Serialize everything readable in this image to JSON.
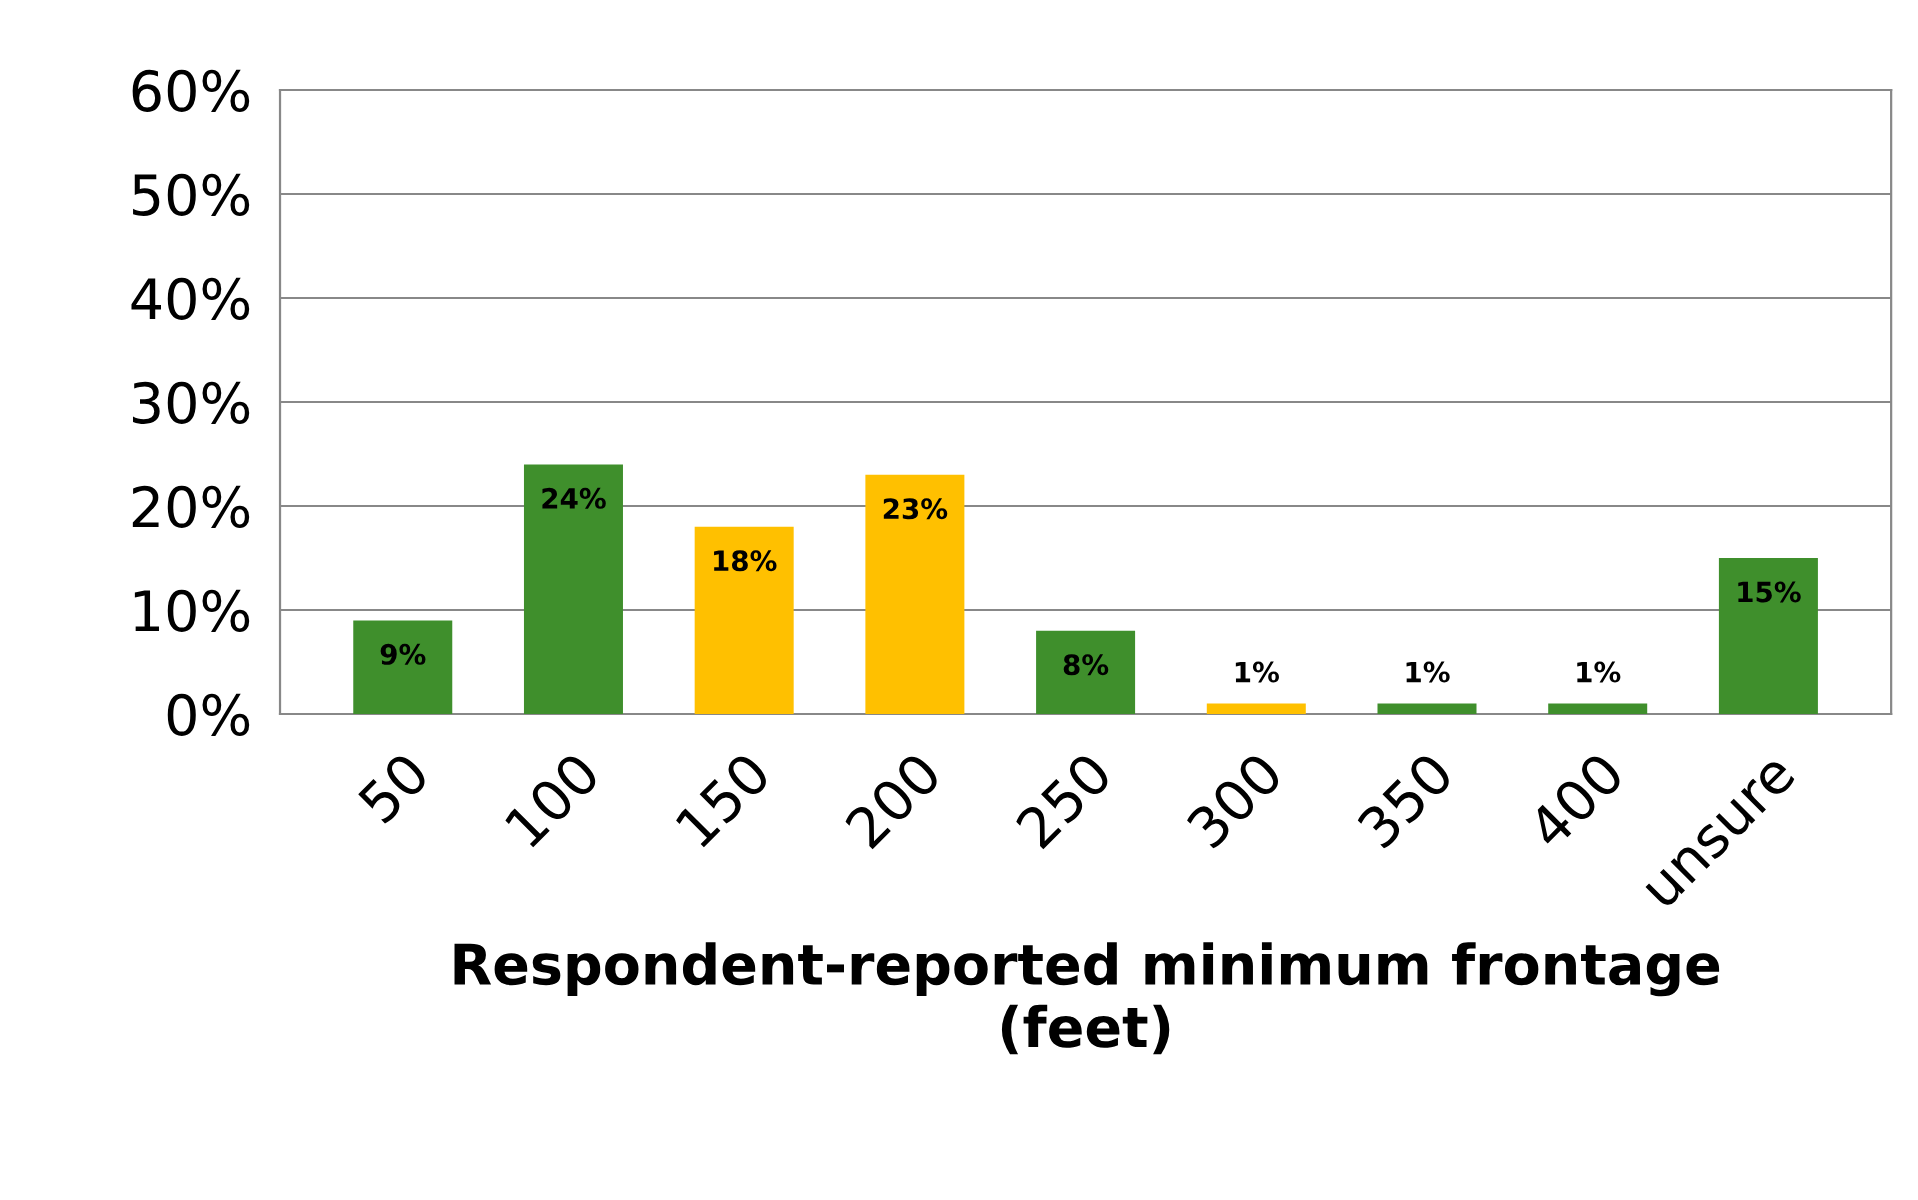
{
  "chart_data": {
    "type": "bar",
    "xlabel": "Respondent-reported minimum frontage\n(feet)",
    "categories": [
      "50",
      "100",
      "150",
      "200",
      "250",
      "300",
      "350",
      "400",
      "unsure"
    ],
    "values": [
      9,
      24,
      18,
      23,
      8,
      1,
      1,
      1,
      15
    ],
    "colors": [
      "#3f8f2c",
      "#3f8f2c",
      "#ffc000",
      "#ffc000",
      "#3f8f2c",
      "#ffc000",
      "#3f8f2c",
      "#3f8f2c",
      "#3f8f2c"
    ],
    "value_labels": [
      "9%",
      "24%",
      "18%",
      "23%",
      "8%",
      "1%",
      "1%",
      "1%",
      "15%"
    ],
    "ylim": [
      0,
      60
    ],
    "yticks": [
      {
        "value": 0,
        "label": "0%"
      },
      {
        "value": 10,
        "label": "10%"
      },
      {
        "value": 20,
        "label": "20%"
      },
      {
        "value": 30,
        "label": "30%"
      },
      {
        "value": 40,
        "label": "40%"
      },
      {
        "value": 50,
        "label": "50%"
      },
      {
        "value": 60,
        "label": "60%"
      }
    ],
    "grid": "y",
    "legend": false
  }
}
